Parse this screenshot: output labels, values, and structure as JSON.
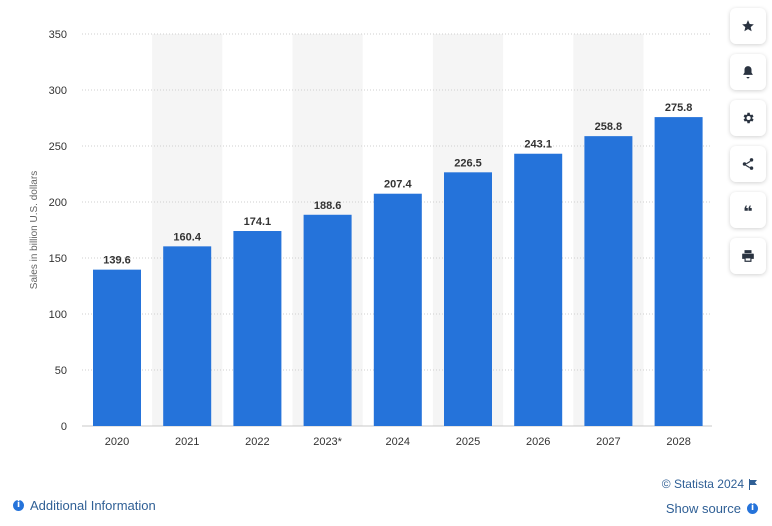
{
  "chart_data": {
    "type": "bar",
    "categories": [
      "2020",
      "2021",
      "2022",
      "2023*",
      "2024",
      "2025",
      "2026",
      "2027",
      "2028"
    ],
    "values": [
      139.6,
      160.4,
      174.1,
      188.6,
      207.4,
      226.5,
      243.1,
      258.8,
      275.8
    ],
    "value_labels": [
      "139.6",
      "160.4",
      "174.1",
      "188.6",
      "207.4",
      "226.5",
      "243.1",
      "258.8",
      "275.8"
    ],
    "ylabel": "Sales in billion U.S. dollars",
    "xlabel": "",
    "ylim": [
      0,
      350
    ],
    "yticks": [
      0,
      50,
      100,
      150,
      200,
      250,
      300,
      350
    ],
    "grid": "horizontal dotted",
    "alternating_column_shading": true,
    "colors": {
      "bar": "#2573da",
      "shade": "#f5f5f5",
      "grid": "#cfcfcf",
      "text": "#333333"
    }
  },
  "sidebar": {
    "buttons": [
      {
        "icon": "star-icon"
      },
      {
        "icon": "bell-icon"
      },
      {
        "icon": "gear-icon"
      },
      {
        "icon": "share-icon"
      },
      {
        "icon": "quote-icon"
      },
      {
        "icon": "print-icon"
      }
    ]
  },
  "footer": {
    "copyright": "© Statista 2024",
    "show_source": "Show source",
    "additional_info": "Additional Information",
    "link_color": "#2f5f95"
  }
}
